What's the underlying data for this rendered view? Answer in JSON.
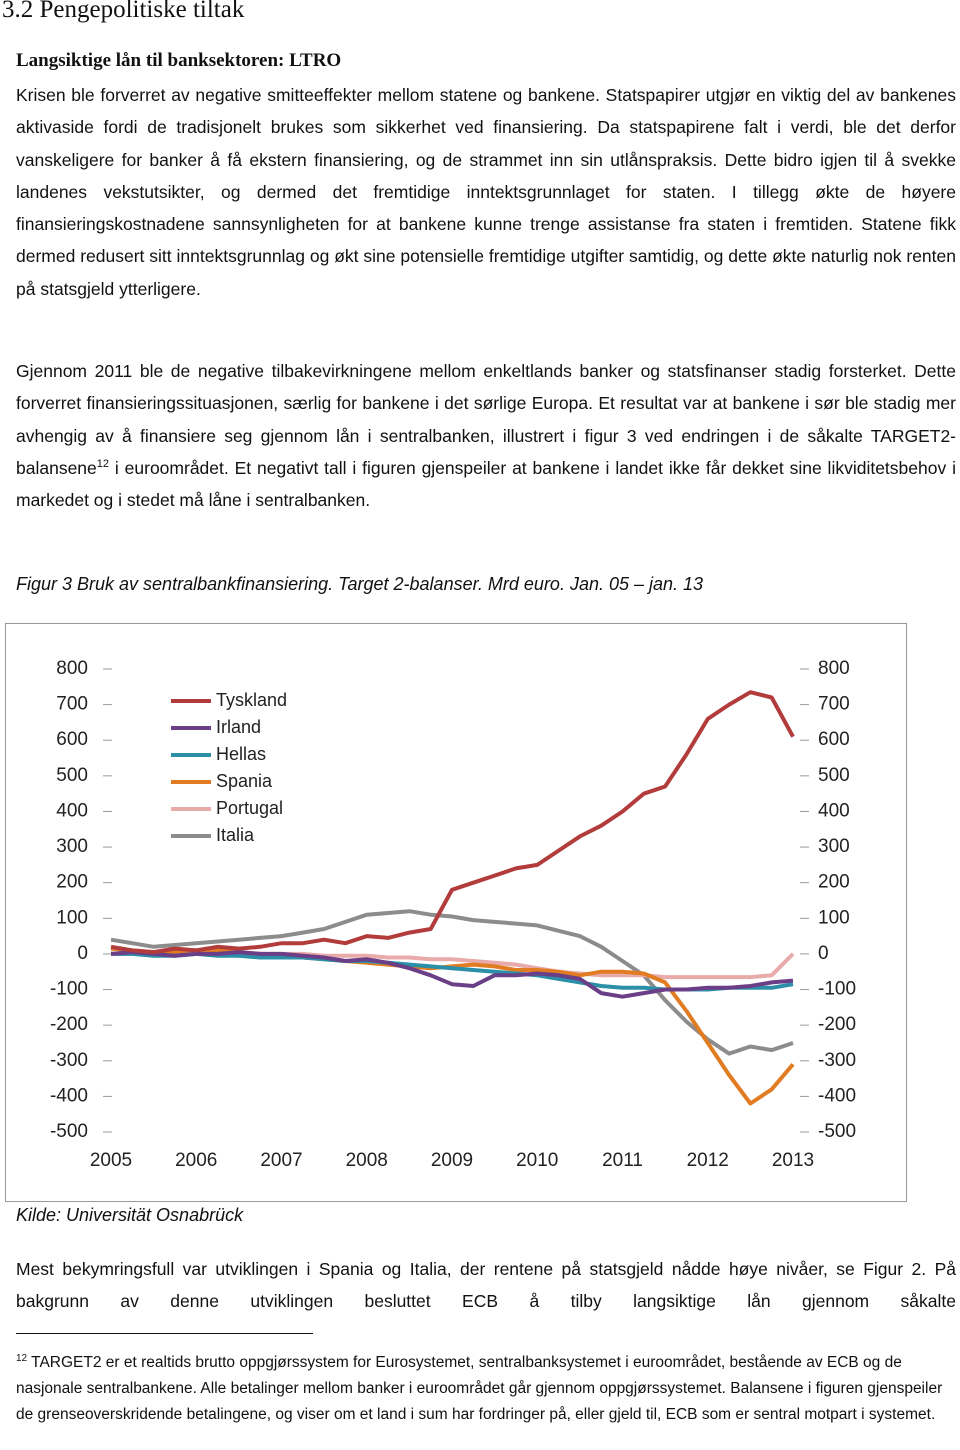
{
  "document": {
    "heading": "3.2 Pengepolitiske tiltak",
    "subheading": "Langsiktige lån til banksektoren: LTRO",
    "paragraph_1": "Krisen ble forverret av negative smitteeffekter mellom statene og bankene. Statspapirer utgjør en viktig del av bankenes aktivaside fordi de tradisjonelt brukes som sikkerhet ved finansiering. Da statspapirene falt i verdi, ble det derfor vanskeligere for banker å få ekstern finansiering, og de strammet inn sin utlånspraksis. Dette bidro igjen til å svekke landenes vekstutsikter, og dermed det fremtidige inntektsgrunnlaget for staten. I tillegg økte de høyere finansieringskostnadene sannsynligheten for at bankene kunne trenge assistanse fra staten i fremtiden. Statene fikk dermed redusert sitt inntektsgrunnlag og økt sine potensielle fremtidige utgifter samtidig, og dette økte naturlig nok renten på statsgjeld ytterligere.",
    "paragraph_2": {
      "before": "Gjennom 2011 ble de negative tilbakevirkningene mellom enkeltlands banker og statsfinanser stadig forsterket. Dette forverret finansieringssituasjonen, særlig for bankene i det sørlige Europa. Et resultat var at bankene i sør ble stadig mer avhengig av å finansiere seg gjennom lån i sentralbanken, illustrert i figur 3 ved endringen i de såkalte TARGET2-balansene",
      "footnote_ref": "12",
      "after": " i euroområdet. Et negativt tall i figuren gjenspeiler at bankene i landet ikke får dekket sine likviditetsbehov i markedet og i stedet må låne i sentralbanken."
    },
    "figure_caption": "Figur 3  Bruk av sentralbankfinansiering. Target 2-balanser. Mrd euro. Jan. 05 – jan. 13",
    "source": "Kilde: Universität Osnabrück",
    "paragraph_3": "Mest bekymringsfull var utviklingen i Spania og Italia, der rentene på statsgjeld nådde høye nivåer, se Figur 2. På bakgrunn av denne utviklingen besluttet ECB  å tilby langsiktige lån gjennom såkalte",
    "footnote": {
      "number": "12",
      "text": "TARGET2 er et realtids brutto oppgjørssystem for Eurosystemet, sentralbanksystemet i euroområdet, bestående av ECB og de nasjonale sentralbankene.  Alle betalinger mellom banker i euroområdet går gjennom oppgjørssystemet. Balansene i figuren gjenspeiler de grenseoverskridende betalingene, og viser om et land i sum har fordringer på, eller gjeld til, ECB som er sentral motpart i systemet."
    }
  },
  "chart_data": {
    "type": "line",
    "x": [
      2005,
      2005.25,
      2005.5,
      2005.75,
      2006,
      2006.25,
      2006.5,
      2006.75,
      2007,
      2007.25,
      2007.5,
      2007.75,
      2008,
      2008.25,
      2008.5,
      2008.75,
      2009,
      2009.25,
      2009.5,
      2009.75,
      2010,
      2010.25,
      2010.5,
      2010.75,
      2011,
      2011.25,
      2011.5,
      2011.75,
      2012,
      2012.25,
      2012.5,
      2012.75,
      2013
    ],
    "xlim": [
      2005,
      2013
    ],
    "xticks": [
      2005,
      2006,
      2007,
      2008,
      2009,
      2010,
      2011,
      2012,
      2013
    ],
    "ylim": [
      -500,
      800
    ],
    "yticks": [
      -500,
      -400,
      -300,
      -200,
      -100,
      0,
      100,
      200,
      300,
      400,
      500,
      600,
      700,
      800
    ],
    "y2lim": [
      -500,
      800
    ],
    "y2ticks": [
      -500,
      -400,
      -300,
      -200,
      -100,
      0,
      100,
      200,
      300,
      400,
      500,
      600,
      700,
      800
    ],
    "grid": false,
    "legend": "upper-left",
    "series": [
      {
        "name": "Tyskland",
        "color": "#b23b3b",
        "values": [
          20,
          10,
          5,
          15,
          10,
          20,
          15,
          20,
          30,
          30,
          40,
          30,
          50,
          45,
          60,
          70,
          180,
          200,
          220,
          240,
          250,
          290,
          330,
          360,
          400,
          450,
          470,
          560,
          660,
          700,
          735,
          720,
          610
        ]
      },
      {
        "name": "Irland",
        "color": "#6a3f88",
        "values": [
          0,
          5,
          0,
          -5,
          0,
          0,
          5,
          0,
          0,
          -5,
          -10,
          -20,
          -15,
          -25,
          -40,
          -60,
          -85,
          -90,
          -60,
          -60,
          -55,
          -60,
          -70,
          -110,
          -120,
          -110,
          -100,
          -100,
          -95,
          -95,
          -90,
          -80,
          -75
        ]
      },
      {
        "name": "Hellas",
        "color": "#2b8fa8",
        "values": [
          0,
          0,
          -5,
          -5,
          0,
          -5,
          -5,
          -10,
          -10,
          -10,
          -15,
          -20,
          -20,
          -25,
          -30,
          -35,
          -40,
          -45,
          -50,
          -55,
          -60,
          -70,
          -80,
          -90,
          -95,
          -95,
          -100,
          -100,
          -100,
          -95,
          -95,
          -95,
          -85
        ]
      },
      {
        "name": "Spania",
        "color": "#e27c22",
        "values": [
          15,
          10,
          5,
          5,
          5,
          10,
          5,
          0,
          -5,
          -10,
          -15,
          -20,
          -25,
          -30,
          -35,
          -40,
          -35,
          -30,
          -35,
          -45,
          -45,
          -50,
          -60,
          -50,
          -50,
          -55,
          -80,
          -160,
          -250,
          -340,
          -420,
          -380,
          -310
        ]
      },
      {
        "name": "Portugal",
        "color": "#e9aaaa",
        "values": [
          0,
          0,
          5,
          0,
          0,
          0,
          5,
          0,
          0,
          0,
          -5,
          -5,
          -5,
          -10,
          -10,
          -15,
          -15,
          -20,
          -25,
          -30,
          -40,
          -50,
          -55,
          -60,
          -60,
          -60,
          -65,
          -65,
          -65,
          -65,
          -65,
          -60,
          0
        ]
      },
      {
        "name": "Italia",
        "color": "#8c8c8c",
        "values": [
          40,
          30,
          20,
          25,
          30,
          35,
          40,
          45,
          50,
          60,
          70,
          90,
          110,
          115,
          120,
          110,
          105,
          95,
          90,
          85,
          80,
          65,
          50,
          20,
          -20,
          -60,
          -130,
          -190,
          -240,
          -280,
          -260,
          -270,
          -250
        ]
      }
    ]
  }
}
